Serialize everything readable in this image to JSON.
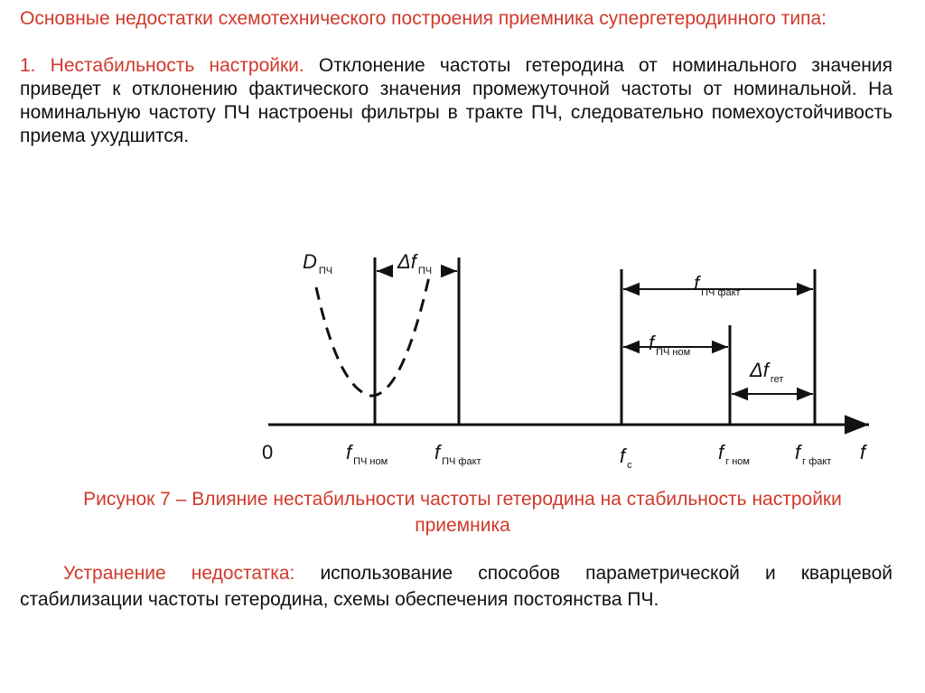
{
  "header": {
    "title": "Основные недостатки схемотехнического построения приемника супергетеродинного типа:"
  },
  "problem": {
    "label": "1. Нестабильность настройки.",
    "text": "Отклонение частоты гетеродина от номинального значения приведет к отклонению фактического значения промежуточной частоты от номинальной. На номинальную частоту ПЧ настроены фильтры в тракте ПЧ, следовательно помехоустойчивость приема ухудшится."
  },
  "figure": {
    "labels": {
      "d_if": {
        "main": "D",
        "sub": "ПЧ"
      },
      "delta_if": {
        "main": "Δf",
        "sub": "ПЧ"
      },
      "f_if_fact": {
        "main": "f",
        "sub": "ПЧ факт"
      },
      "f_if_nom": {
        "main": "f",
        "sub": "ПЧ ном"
      },
      "delta_het": {
        "main": "Δf",
        "sub": "гет"
      },
      "zero": {
        "main": "0"
      },
      "ax_if_nom": {
        "main": "f",
        "sub": "ПЧ ном"
      },
      "ax_if_fact": {
        "main": "f",
        "sub": "ПЧ факт"
      },
      "ax_c": {
        "main": "f",
        "sub": "c"
      },
      "ax_h_nom": {
        "main": "f",
        "sub": "г ном"
      },
      "ax_h_fact": {
        "main": "f",
        "sub": "г факт"
      },
      "ax_f": {
        "main": "f"
      }
    },
    "caption": "Рисунок 7 – Влияние нестабильности частоты гетеродина на стабильность настройки приемника"
  },
  "solution": {
    "label": "Устранение недостатка:",
    "text": "использование способов параметрической и кварцевой стабилизации частоты гетеродина, схемы обеспечения постоянства ПЧ."
  }
}
